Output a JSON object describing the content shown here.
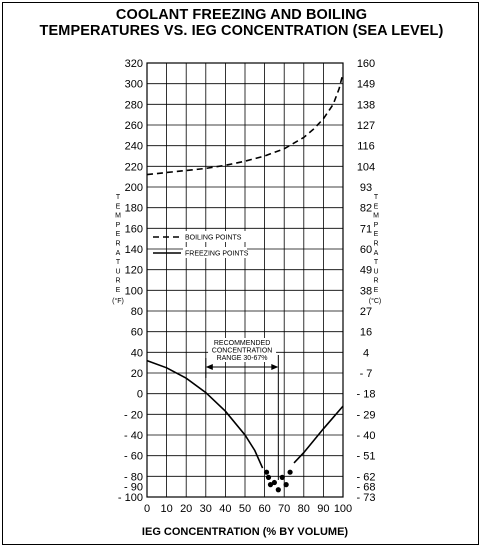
{
  "chart_data": {
    "type": "line",
    "title": "COOLANT FREEZING AND BOILING",
    "subtitle": "TEMPERATURES VS. IEG CONCENTRATION (SEA LEVEL)",
    "xlabel": "IEG CONCENTRATION (% BY VOLUME)",
    "ylabel_left": "TEMPERATURE",
    "ylabel_left_unit": "(°F)",
    "ylabel_right": "TEMPERATURE",
    "ylabel_right_unit": "(°C)",
    "xlim": [
      0,
      100
    ],
    "ylim": [
      -100,
      320
    ],
    "x_ticks": [
      "0",
      "10",
      "20",
      "30",
      "40",
      "50",
      "60",
      "70",
      "80",
      "90",
      "100"
    ],
    "y_ticks_left": [
      "- 100",
      "- 90",
      "- 80",
      "- 60",
      "- 40",
      "- 20",
      "0",
      "20",
      "40",
      "60",
      "80",
      "100",
      "120",
      "140",
      "160",
      "180",
      "200",
      "220",
      "240",
      "260",
      "280",
      "300",
      "320"
    ],
    "y_ticks_right": [
      "- 73",
      "- 68",
      "- 62",
      "- 51",
      "- 40",
      "- 29",
      "- 18",
      "- 7",
      "4",
      "16",
      "27",
      "38",
      "49",
      "60",
      "71",
      "82",
      "93",
      "104",
      "116",
      "127",
      "138",
      "149",
      "160"
    ],
    "legend": {
      "placement": "upper-left",
      "entries": [
        {
          "label": "BOILING POINTS",
          "style": "dashed"
        },
        {
          "label": "FREEZING POINTS",
          "style": "solid"
        }
      ]
    },
    "series": [
      {
        "name": "BOILING POINTS",
        "style": "dashed",
        "x": [
          0,
          10,
          20,
          30,
          40,
          50,
          60,
          70,
          80,
          85,
          90,
          95,
          98,
          100
        ],
        "y": [
          212,
          214,
          216,
          218,
          221,
          225,
          230,
          237,
          248,
          256,
          266,
          280,
          295,
          310
        ]
      },
      {
        "name": "FREEZING POINTS",
        "style": "solid",
        "x": [
          0,
          10,
          20,
          30,
          40,
          50,
          55,
          59
        ],
        "y": [
          32,
          25,
          15,
          1,
          -17,
          -40,
          -55,
          -72
        ]
      },
      {
        "name": "FREEZING POINTS",
        "style": "solid",
        "x": [
          75,
          80,
          90,
          100
        ],
        "y": [
          -67,
          -57,
          -34,
          -12
        ]
      },
      {
        "name": "",
        "style": "dots",
        "x": [
          61,
          62,
          63,
          65,
          67,
          69,
          71,
          73
        ],
        "y": [
          -76,
          -81,
          -88,
          -86,
          -93,
          -81,
          -88,
          -76
        ]
      }
    ],
    "annotation": {
      "lines": [
        "RECOMMENDED",
        "CONCENTRATION",
        "RANGE 30-67%"
      ],
      "range": [
        30,
        67
      ]
    },
    "grid": true
  }
}
